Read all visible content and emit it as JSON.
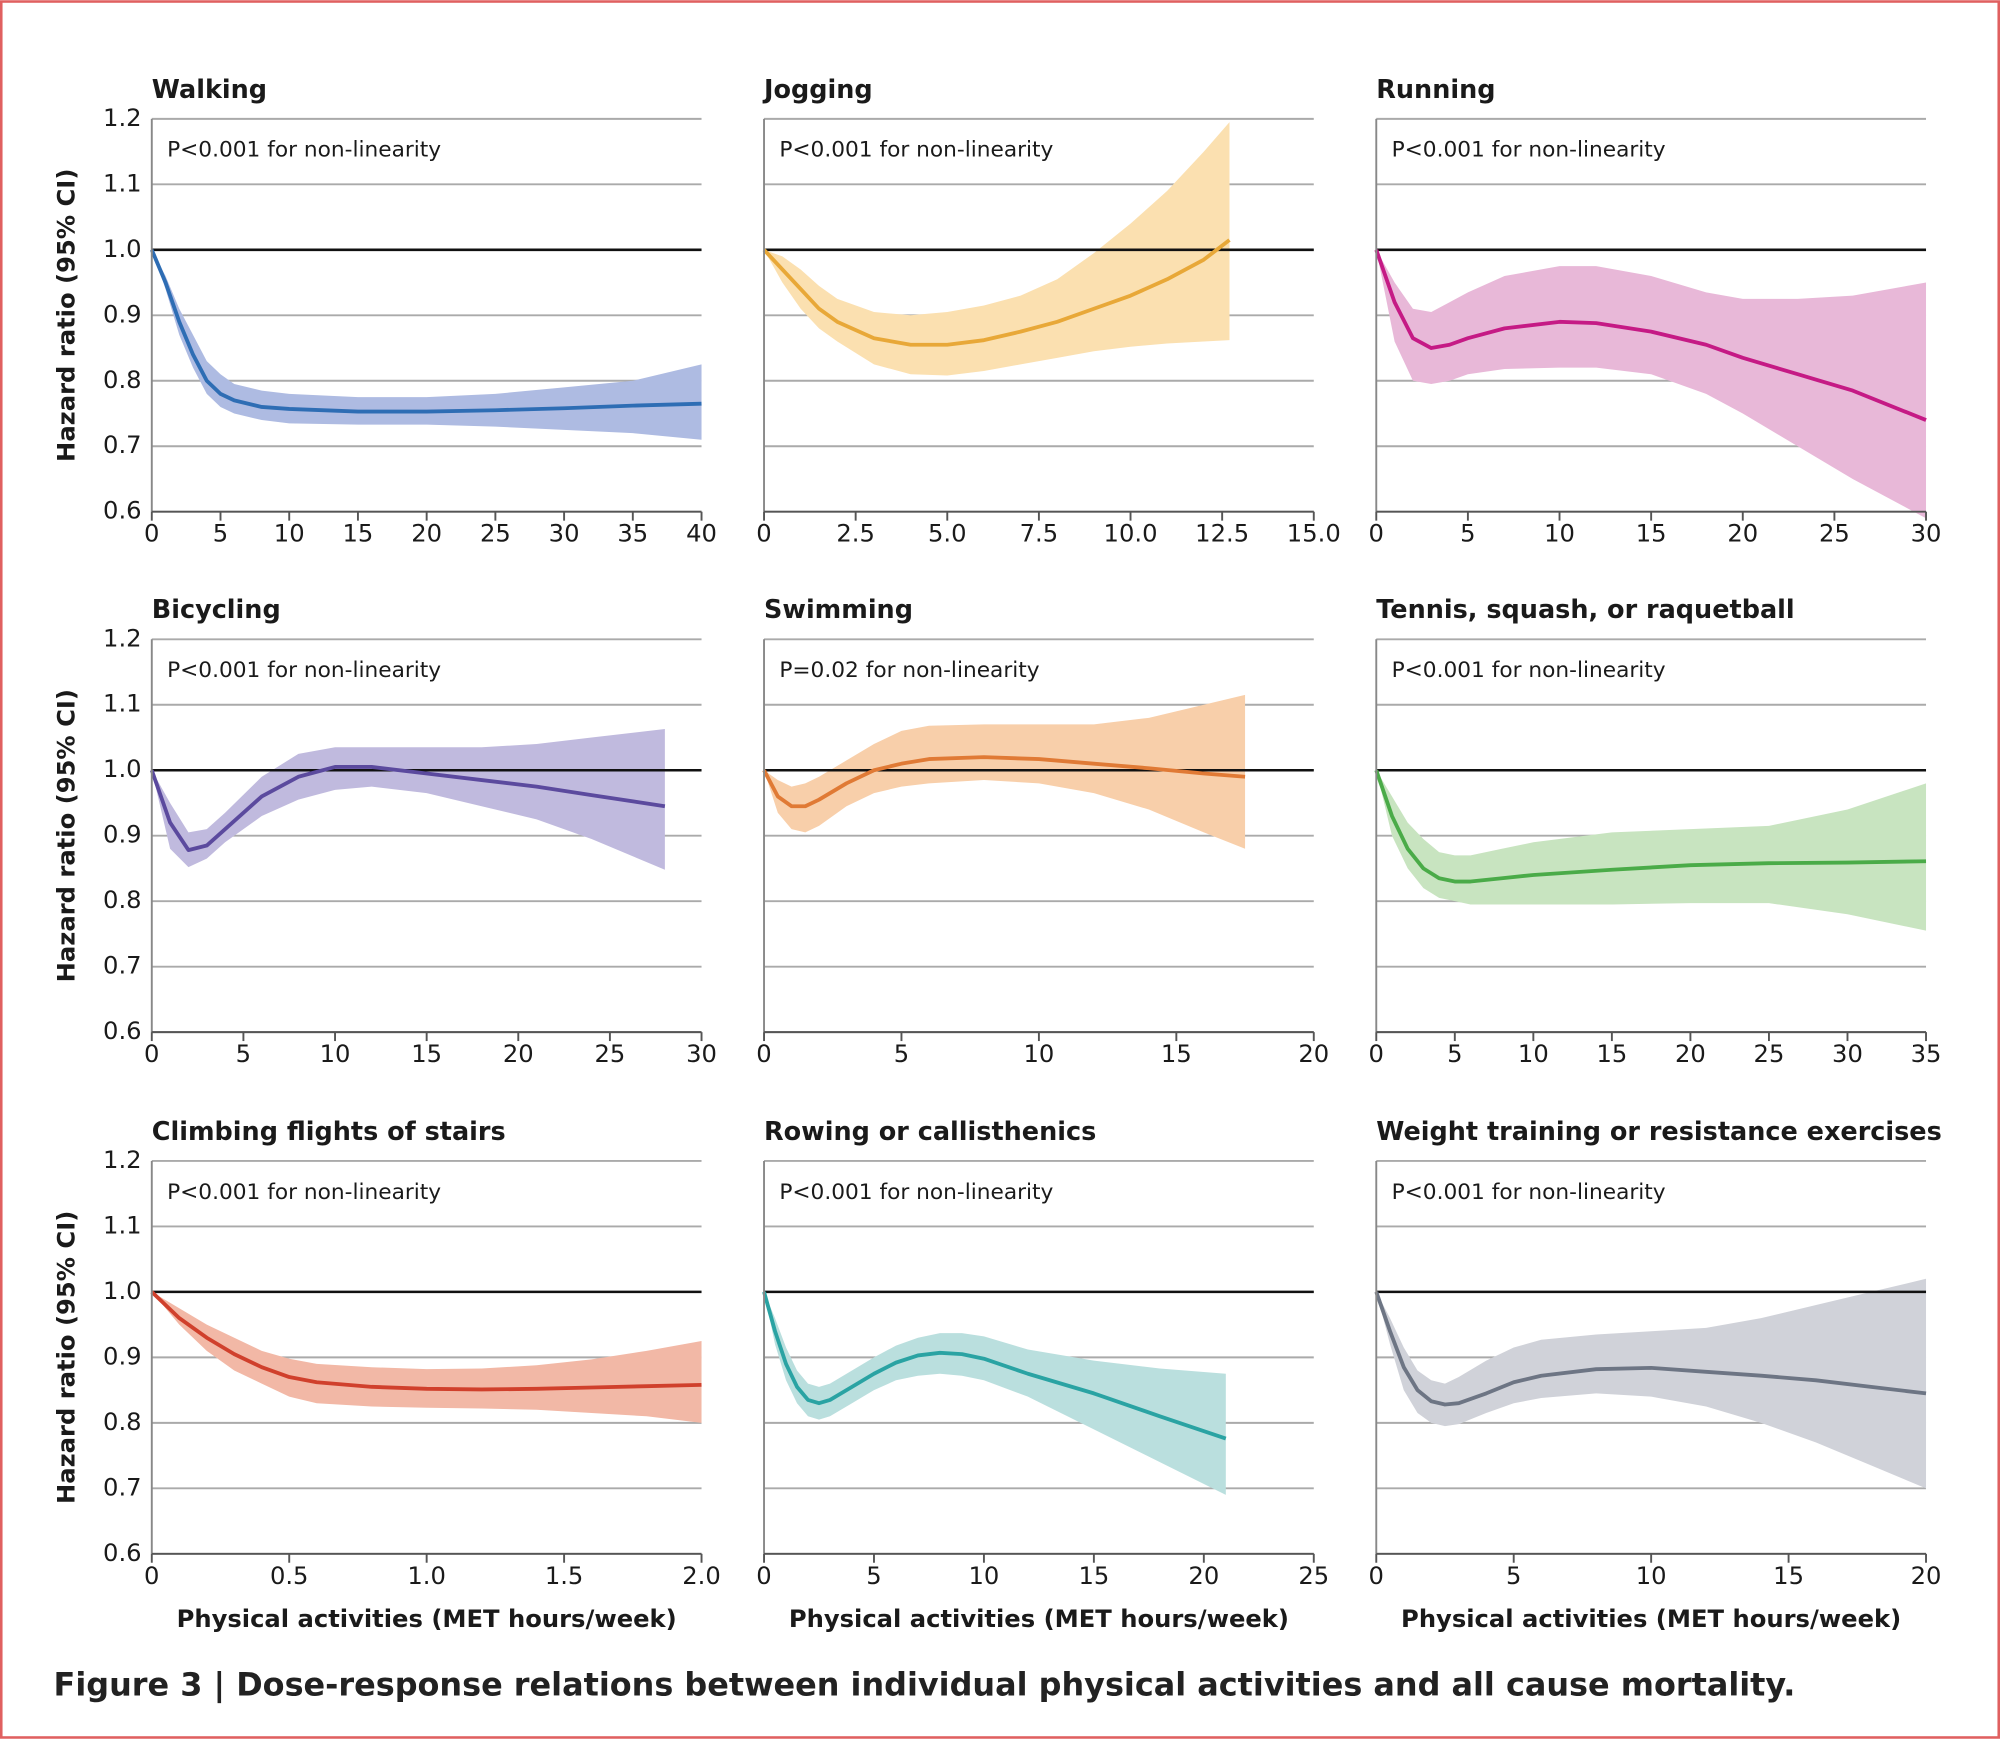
{
  "caption": "Figure 3 | Dose-response relations between individual physical activities and all cause mortality.",
  "chart_data": [
    {
      "type": "line",
      "title": "Walking",
      "annotation": "P<0.001 for non-linearity",
      "y_label": "Hazard ratio (95% CI)",
      "xlim": [
        0,
        40
      ],
      "xticks": [
        0,
        5,
        10,
        15,
        20,
        25,
        30,
        35,
        40
      ],
      "ylim": [
        0.6,
        1.2
      ],
      "yticks": [
        0.6,
        0.7,
        0.8,
        0.9,
        {
          "value": 1,
          "label": "1.0"
        },
        1.1,
        1.2
      ],
      "grid": true,
      "hline": 1,
      "x": [
        0,
        1,
        2,
        3,
        4,
        5,
        6,
        8,
        10,
        15,
        20,
        25,
        30,
        35,
        40
      ],
      "series": [
        {
          "color": "#2e6db4",
          "band_color": "#aebbe2",
          "values": [
            1.0,
            0.95,
            0.89,
            0.84,
            0.8,
            0.78,
            0.77,
            0.76,
            0.757,
            0.753,
            0.753,
            0.755,
            0.758,
            0.762,
            0.765
          ],
          "lower": [
            1.0,
            0.94,
            0.87,
            0.82,
            0.78,
            0.76,
            0.75,
            0.74,
            0.735,
            0.733,
            0.733,
            0.73,
            0.725,
            0.72,
            0.71
          ],
          "upper": [
            1.0,
            0.96,
            0.91,
            0.87,
            0.83,
            0.81,
            0.795,
            0.785,
            0.78,
            0.775,
            0.775,
            0.78,
            0.79,
            0.8,
            0.825
          ]
        }
      ]
    },
    {
      "type": "line",
      "title": "Jogging",
      "annotation": "P<0.001 for non-linearity",
      "xlim": [
        0,
        15
      ],
      "xticks": [
        0,
        2.5,
        {
          "value": 5,
          "label": "5.0"
        },
        7.5,
        {
          "value": 10,
          "label": "10.0"
        },
        12.5,
        {
          "value": 15,
          "label": "15.0"
        }
      ],
      "ylim": [
        0.6,
        1.2
      ],
      "ygrid": [
        0.6,
        0.7,
        0.8,
        0.9,
        1,
        1.1,
        1.2
      ],
      "grid": true,
      "hline": 1,
      "x": [
        0,
        0.5,
        1,
        1.5,
        2,
        3,
        4,
        5,
        6,
        7,
        8,
        9,
        10,
        11,
        12,
        12.7
      ],
      "series": [
        {
          "color": "#e8a838",
          "band_color": "#fbe0b0",
          "values": [
            1.0,
            0.97,
            0.94,
            0.91,
            0.89,
            0.865,
            0.855,
            0.855,
            0.862,
            0.875,
            0.89,
            0.91,
            0.93,
            0.955,
            0.985,
            1.015
          ],
          "lower": [
            1.0,
            0.95,
            0.91,
            0.88,
            0.86,
            0.825,
            0.81,
            0.808,
            0.815,
            0.825,
            0.835,
            0.845,
            0.852,
            0.857,
            0.86,
            0.862
          ],
          "upper": [
            1.0,
            0.99,
            0.97,
            0.945,
            0.925,
            0.905,
            0.9,
            0.905,
            0.915,
            0.93,
            0.955,
            0.995,
            1.04,
            1.09,
            1.15,
            1.195
          ]
        }
      ]
    },
    {
      "type": "line",
      "title": "Running",
      "annotation": "P<0.001 for non-linearity",
      "xlim": [
        0,
        30
      ],
      "xticks": [
        0,
        5,
        10,
        15,
        20,
        25,
        30
      ],
      "ylim": [
        0.6,
        1.2
      ],
      "ygrid": [
        0.6,
        0.7,
        0.8,
        0.9,
        1,
        1.1,
        1.2
      ],
      "grid": true,
      "hline": 1,
      "x": [
        0,
        1,
        2,
        3,
        4,
        5,
        7,
        10,
        12,
        15,
        18,
        20,
        23,
        26,
        30
      ],
      "series": [
        {
          "color": "#c51a85",
          "band_color": "#e8b8d8",
          "values": [
            1.0,
            0.92,
            0.865,
            0.85,
            0.855,
            0.865,
            0.88,
            0.89,
            0.888,
            0.875,
            0.855,
            0.835,
            0.81,
            0.785,
            0.74
          ],
          "lower": [
            1.0,
            0.86,
            0.8,
            0.795,
            0.8,
            0.81,
            0.818,
            0.82,
            0.82,
            0.81,
            0.78,
            0.75,
            0.7,
            0.65,
            0.59
          ],
          "upper": [
            1.0,
            0.95,
            0.91,
            0.905,
            0.92,
            0.935,
            0.96,
            0.975,
            0.975,
            0.96,
            0.935,
            0.925,
            0.925,
            0.93,
            0.95
          ]
        }
      ]
    },
    {
      "type": "line",
      "title": "Bicycling",
      "annotation": "P<0.001 for non-linearity",
      "y_label": "Hazard ratio (95% CI)",
      "xlim": [
        0,
        30
      ],
      "xticks": [
        0,
        5,
        10,
        15,
        20,
        25,
        30
      ],
      "ylim": [
        0.6,
        1.2
      ],
      "yticks": [
        0.6,
        0.7,
        0.8,
        0.9,
        {
          "value": 1,
          "label": "1.0"
        },
        1.1,
        1.2
      ],
      "grid": true,
      "hline": 1,
      "x": [
        0,
        1,
        2,
        3,
        4,
        6,
        8,
        10,
        12,
        15,
        18,
        21,
        24,
        28
      ],
      "series": [
        {
          "color": "#5b4a9e",
          "band_color": "#c0bade",
          "values": [
            1.0,
            0.92,
            0.878,
            0.885,
            0.91,
            0.96,
            0.99,
            1.005,
            1.005,
            0.995,
            0.985,
            0.975,
            0.962,
            0.945
          ],
          "lower": [
            1.0,
            0.88,
            0.852,
            0.865,
            0.89,
            0.93,
            0.955,
            0.97,
            0.975,
            0.965,
            0.945,
            0.925,
            0.895,
            0.848
          ],
          "upper": [
            1.0,
            0.95,
            0.905,
            0.91,
            0.935,
            0.99,
            1.025,
            1.035,
            1.035,
            1.035,
            1.035,
            1.04,
            1.05,
            1.063
          ]
        }
      ]
    },
    {
      "type": "line",
      "title": "Swimming",
      "annotation": "P=0.02 for non-linearity",
      "xlim": [
        0,
        20
      ],
      "xticks": [
        0,
        5,
        10,
        15,
        20
      ],
      "ylim": [
        0.6,
        1.2
      ],
      "ygrid": [
        0.6,
        0.7,
        0.8,
        0.9,
        1,
        1.1,
        1.2
      ],
      "grid": true,
      "hline": 1,
      "x": [
        0,
        0.5,
        1,
        1.5,
        2,
        3,
        4,
        5,
        6,
        8,
        10,
        12,
        14,
        16,
        17.5
      ],
      "series": [
        {
          "color": "#e07a35",
          "band_color": "#f8cfaa",
          "values": [
            1.0,
            0.96,
            0.945,
            0.945,
            0.955,
            0.98,
            1.0,
            1.01,
            1.017,
            1.02,
            1.017,
            1.01,
            1.003,
            0.995,
            0.99
          ],
          "lower": [
            1.0,
            0.935,
            0.91,
            0.905,
            0.915,
            0.945,
            0.965,
            0.975,
            0.98,
            0.985,
            0.98,
            0.965,
            0.94,
            0.905,
            0.88
          ],
          "upper": [
            1.0,
            0.985,
            0.975,
            0.98,
            0.99,
            1.015,
            1.04,
            1.06,
            1.068,
            1.07,
            1.07,
            1.07,
            1.08,
            1.1,
            1.115
          ]
        }
      ]
    },
    {
      "type": "line",
      "title": "Tennis, squash, or raquetball",
      "annotation": "P<0.001 for non-linearity",
      "xlim": [
        0,
        35
      ],
      "xticks": [
        0,
        5,
        10,
        15,
        20,
        25,
        30,
        35
      ],
      "ylim": [
        0.6,
        1.2
      ],
      "ygrid": [
        0.6,
        0.7,
        0.8,
        0.9,
        1,
        1.1,
        1.2
      ],
      "grid": true,
      "hline": 1,
      "x": [
        0,
        1,
        2,
        3,
        4,
        5,
        6,
        8,
        10,
        15,
        20,
        25,
        30,
        35
      ],
      "series": [
        {
          "color": "#4aab48",
          "band_color": "#c8e4c0",
          "values": [
            1.0,
            0.93,
            0.88,
            0.85,
            0.835,
            0.83,
            0.83,
            0.835,
            0.84,
            0.848,
            0.855,
            0.858,
            0.859,
            0.861
          ],
          "lower": [
            1.0,
            0.9,
            0.85,
            0.82,
            0.805,
            0.8,
            0.795,
            0.795,
            0.795,
            0.795,
            0.797,
            0.797,
            0.78,
            0.755
          ],
          "upper": [
            1.0,
            0.96,
            0.92,
            0.895,
            0.875,
            0.87,
            0.87,
            0.88,
            0.89,
            0.905,
            0.91,
            0.915,
            0.94,
            0.98
          ]
        }
      ]
    },
    {
      "type": "line",
      "title": "Climbing flights of stairs",
      "annotation": "P<0.001 for non-linearity",
      "y_label": "Hazard ratio (95% CI)",
      "x_label": "Physical activities (MET hours/week)",
      "xlim": [
        0,
        2
      ],
      "xticks": [
        0,
        0.5,
        {
          "value": 1,
          "label": "1.0"
        },
        1.5,
        {
          "value": 2,
          "label": "2.0"
        }
      ],
      "ylim": [
        0.6,
        1.2
      ],
      "yticks": [
        0.6,
        0.7,
        0.8,
        0.9,
        {
          "value": 1,
          "label": "1.0"
        },
        1.1,
        1.2
      ],
      "grid": true,
      "hline": 1,
      "x": [
        0,
        0.1,
        0.2,
        0.3,
        0.4,
        0.5,
        0.6,
        0.8,
        1.0,
        1.2,
        1.4,
        1.6,
        1.8,
        2.0
      ],
      "series": [
        {
          "color": "#d0402c",
          "band_color": "#f2b8a6",
          "values": [
            1.0,
            0.96,
            0.93,
            0.905,
            0.885,
            0.87,
            0.862,
            0.855,
            0.852,
            0.851,
            0.852,
            0.854,
            0.856,
            0.858
          ],
          "lower": [
            1.0,
            0.95,
            0.91,
            0.88,
            0.86,
            0.84,
            0.83,
            0.825,
            0.823,
            0.822,
            0.82,
            0.815,
            0.81,
            0.8
          ],
          "upper": [
            1.0,
            0.975,
            0.95,
            0.93,
            0.91,
            0.898,
            0.89,
            0.885,
            0.882,
            0.883,
            0.888,
            0.897,
            0.91,
            0.925
          ]
        }
      ]
    },
    {
      "type": "line",
      "title": "Rowing or callisthenics",
      "annotation": "P<0.001 for non-linearity",
      "x_label": "Physical activities (MET hours/week)",
      "xlim": [
        0,
        25
      ],
      "xticks": [
        0,
        5,
        10,
        15,
        20,
        25
      ],
      "ylim": [
        0.6,
        1.2
      ],
      "ygrid": [
        0.6,
        0.7,
        0.8,
        0.9,
        1,
        1.1,
        1.2
      ],
      "grid": true,
      "hline": 1,
      "x": [
        0,
        0.5,
        1,
        1.5,
        2,
        2.5,
        3,
        4,
        5,
        6,
        7,
        8,
        9,
        10,
        12,
        15,
        18,
        21
      ],
      "series": [
        {
          "color": "#2aa3a3",
          "band_color": "#badfde",
          "values": [
            1.0,
            0.94,
            0.89,
            0.855,
            0.835,
            0.83,
            0.835,
            0.855,
            0.875,
            0.892,
            0.903,
            0.907,
            0.905,
            0.898,
            0.875,
            0.845,
            0.81,
            0.776
          ],
          "lower": [
            1.0,
            0.92,
            0.865,
            0.83,
            0.81,
            0.805,
            0.81,
            0.83,
            0.85,
            0.865,
            0.872,
            0.875,
            0.872,
            0.865,
            0.84,
            0.79,
            0.74,
            0.69
          ],
          "upper": [
            1.0,
            0.96,
            0.915,
            0.88,
            0.86,
            0.855,
            0.86,
            0.88,
            0.9,
            0.918,
            0.93,
            0.937,
            0.937,
            0.932,
            0.912,
            0.895,
            0.883,
            0.875
          ]
        }
      ]
    },
    {
      "type": "line",
      "title": "Weight training or resistance exercises",
      "annotation": "P<0.001 for non-linearity",
      "x_label": "Physical activities (MET hours/week)",
      "xlim": [
        0,
        20
      ],
      "xticks": [
        0,
        5,
        10,
        15,
        20
      ],
      "ylim": [
        0.6,
        1.2
      ],
      "ygrid": [
        0.6,
        0.7,
        0.8,
        0.9,
        1,
        1.1,
        1.2
      ],
      "grid": true,
      "hline": 1,
      "x": [
        0,
        0.5,
        1,
        1.5,
        2,
        2.5,
        3,
        4,
        5,
        6,
        8,
        10,
        12,
        14,
        16,
        18,
        20
      ],
      "series": [
        {
          "color": "#6d7584",
          "band_color": "#d0d2d9",
          "values": [
            1.0,
            0.94,
            0.885,
            0.85,
            0.833,
            0.828,
            0.83,
            0.845,
            0.862,
            0.872,
            0.882,
            0.884,
            0.878,
            0.872,
            0.865,
            0.855,
            0.845
          ],
          "lower": [
            1.0,
            0.92,
            0.85,
            0.815,
            0.8,
            0.795,
            0.798,
            0.815,
            0.83,
            0.838,
            0.845,
            0.84,
            0.825,
            0.8,
            0.77,
            0.735,
            0.7
          ],
          "upper": [
            1.0,
            0.96,
            0.915,
            0.88,
            0.865,
            0.86,
            0.87,
            0.895,
            0.915,
            0.927,
            0.935,
            0.94,
            0.945,
            0.96,
            0.98,
            1.0,
            1.02
          ]
        }
      ]
    }
  ]
}
